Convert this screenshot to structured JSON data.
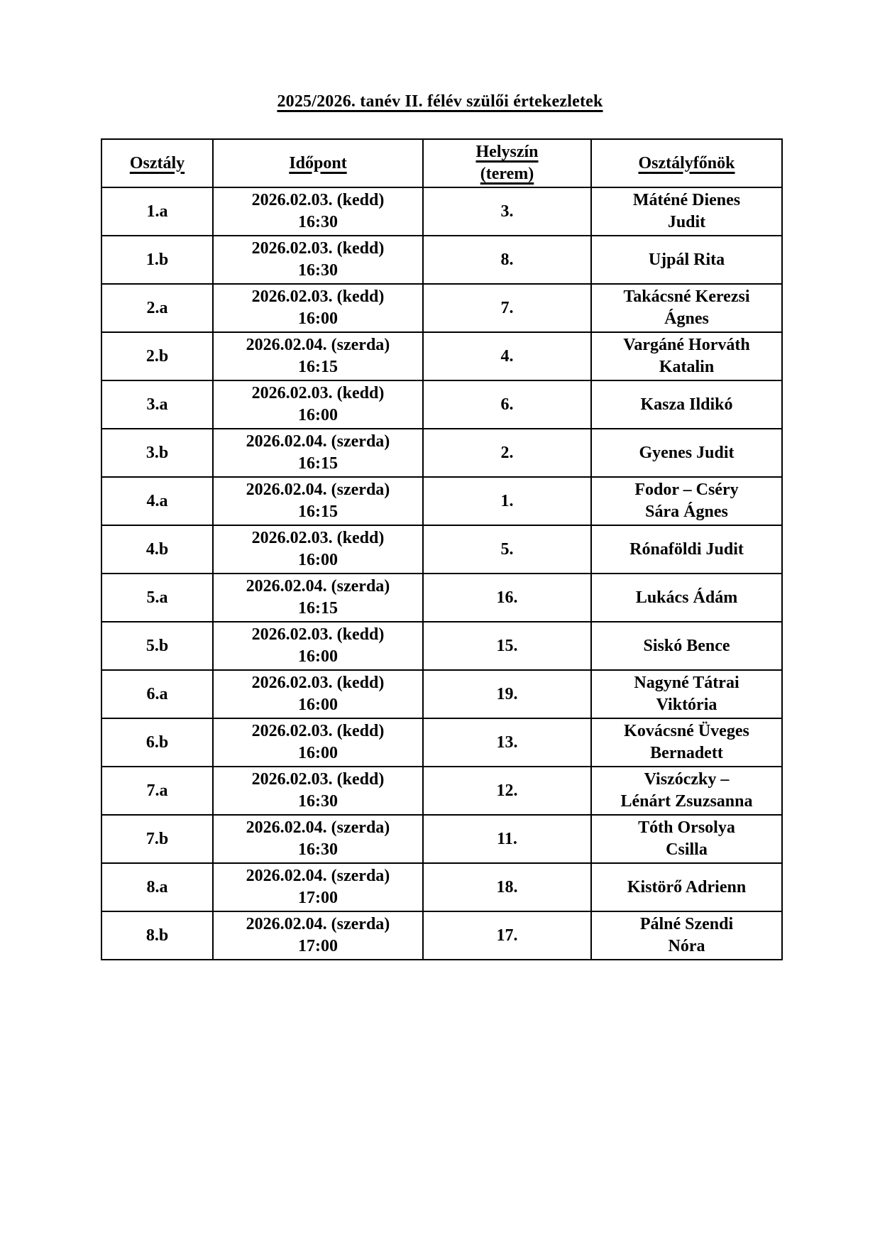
{
  "page": {
    "title": "2025/2026. tanév II. félév szülői értekezletek"
  },
  "table": {
    "headers": {
      "class": "Osztály",
      "time": "Időpont",
      "location_line1": "Helyszín",
      "location_line2": "(terem)",
      "teacher": "Osztályfőnök"
    },
    "rows": [
      {
        "class": "1.a",
        "date": "2026.02.03. (kedd)",
        "time": "16:30",
        "room": "3.",
        "teacher": "Máténé Dienes\nJudit"
      },
      {
        "class": "1.b",
        "date": "2026.02.03. (kedd)",
        "time": "16:30",
        "room": "8.",
        "teacher": "Ujpál Rita"
      },
      {
        "class": "2.a",
        "date": "2026.02.03. (kedd)",
        "time": "16:00",
        "room": "7.",
        "teacher": "Takácsné Kerezsi\nÁgnes"
      },
      {
        "class": "2.b",
        "date": "2026.02.04. (szerda)",
        "time": "16:15",
        "room": "4.",
        "teacher": "Vargáné Horváth\nKatalin"
      },
      {
        "class": "3.a",
        "date": "2026.02.03. (kedd)",
        "time": "16:00",
        "room": "6.",
        "teacher": "Kasza Ildikó"
      },
      {
        "class": "3.b",
        "date": "2026.02.04. (szerda)",
        "time": "16:15",
        "room": "2.",
        "teacher": "Gyenes Judit"
      },
      {
        "class": "4.a",
        "date": "2026.02.04. (szerda)",
        "time": "16:15",
        "room": "1.",
        "teacher": "Fodor – Cséry\nSára Ágnes"
      },
      {
        "class": "4.b",
        "date": "2026.02.03. (kedd)",
        "time": "16:00",
        "room": "5.",
        "teacher": "Rónaföldi Judit"
      },
      {
        "class": "5.a",
        "date": "2026.02.04. (szerda)",
        "time": "16:15",
        "room": "16.",
        "teacher": "Lukács Ádám"
      },
      {
        "class": "5.b",
        "date": "2026.02.03. (kedd)",
        "time": "16:00",
        "room": "15.",
        "teacher": "Siskó Bence"
      },
      {
        "class": "6.a",
        "date": "2026.02.03. (kedd)",
        "time": "16:00",
        "room": "19.",
        "teacher": "Nagyné Tátrai\nViktória"
      },
      {
        "class": "6.b",
        "date": "2026.02.03. (kedd)",
        "time": "16:00",
        "room": "13.",
        "teacher": "Kovácsné Üveges\nBernadett"
      },
      {
        "class": "7.a",
        "date": "2026.02.03. (kedd)",
        "time": "16:30",
        "room": "12.",
        "teacher": "Viszóczky –\nLénárt Zsuzsanna"
      },
      {
        "class": "7.b",
        "date": "2026.02.04. (szerda)",
        "time": "16:30",
        "room": "11.",
        "teacher": "Tóth Orsolya\nCsilla"
      },
      {
        "class": "8.a",
        "date": "2026.02.04. (szerda)",
        "time": "17:00",
        "room": "18.",
        "teacher": "Kistörő Adrienn"
      },
      {
        "class": "8.b",
        "date": "2026.02.04. (szerda)",
        "time": "17:00",
        "room": "17.",
        "teacher": "Pálné Szendi\nNóra"
      }
    ]
  }
}
